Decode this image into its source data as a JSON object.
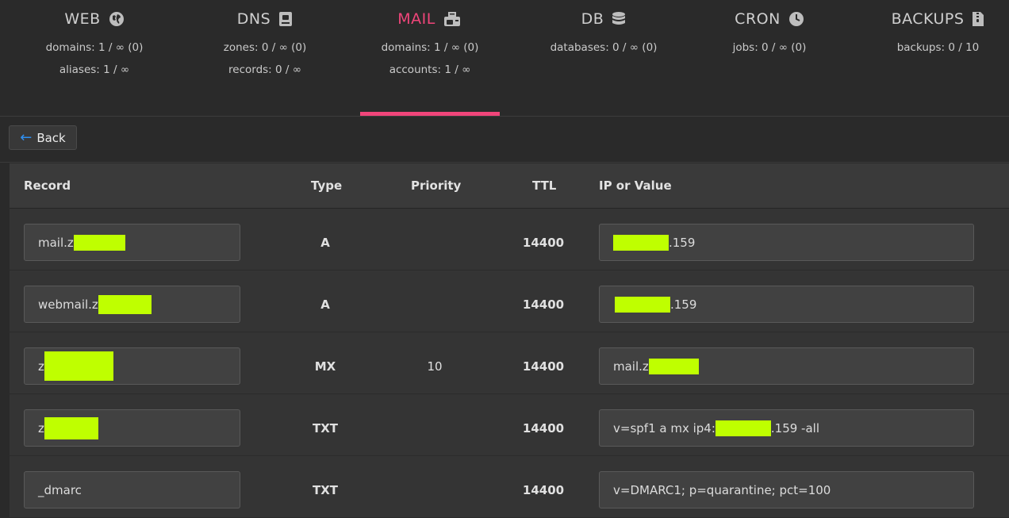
{
  "tabs": [
    {
      "id": "web",
      "title": "WEB",
      "icon": "globe-icon",
      "stat1": "domains: 1 / ∞ (0)",
      "stat2": "aliases: 1 / ∞"
    },
    {
      "id": "dns",
      "title": "DNS",
      "icon": "book-icon",
      "stat1": "zones: 0 / ∞ (0)",
      "stat2": "records: 0 / ∞"
    },
    {
      "id": "mail",
      "title": "MAIL",
      "icon": "mailbox-icon",
      "stat1": "domains: 1 / ∞ (0)",
      "stat2": "accounts: 1 / ∞",
      "active": true
    },
    {
      "id": "db",
      "title": "DB",
      "icon": "database-icon",
      "stat1": "databases: 0 / ∞ (0)",
      "stat2": ""
    },
    {
      "id": "cron",
      "title": "CRON",
      "icon": "clock-icon",
      "stat1": "jobs: 0 / ∞ (0)",
      "stat2": ""
    },
    {
      "id": "backups",
      "title": "BACKUPS",
      "icon": "file-archive-icon",
      "stat1": "backups: 0 / 10",
      "stat2": ""
    }
  ],
  "colors": {
    "accent": "#f0457a",
    "redaction": "#bfff00",
    "back_arrow": "#2f8ff0"
  },
  "back_button": {
    "label": "Back"
  },
  "table": {
    "headers": {
      "record": "Record",
      "type": "Type",
      "priority": "Priority",
      "ttl": "TTL",
      "value": "IP or Value"
    },
    "rows": [
      {
        "record_prefix": "mail.z",
        "record_suffix": "",
        "type": "A",
        "priority": "",
        "ttl": "14400",
        "value_prefix": "",
        "value_suffix": ".159"
      },
      {
        "record_prefix": "webmail.z",
        "record_suffix": "",
        "type": "A",
        "priority": "",
        "ttl": "14400",
        "value_prefix": "",
        "value_suffix": ".159"
      },
      {
        "record_prefix": "z",
        "record_suffix": "",
        "type": "MX",
        "priority": "10",
        "ttl": "14400",
        "value_prefix": "mail.z",
        "value_suffix": ""
      },
      {
        "record_prefix": "z",
        "record_suffix": "",
        "type": "TXT",
        "priority": "",
        "ttl": "14400",
        "value_prefix": "v=spf1 a mx ip4:",
        "value_suffix": ".159 -all"
      },
      {
        "record_prefix": "_dmarc",
        "record_suffix": "",
        "type": "TXT",
        "priority": "",
        "ttl": "14400",
        "value_prefix": "v=DMARC1; p=quarantine; pct=100",
        "value_suffix": ""
      }
    ]
  }
}
